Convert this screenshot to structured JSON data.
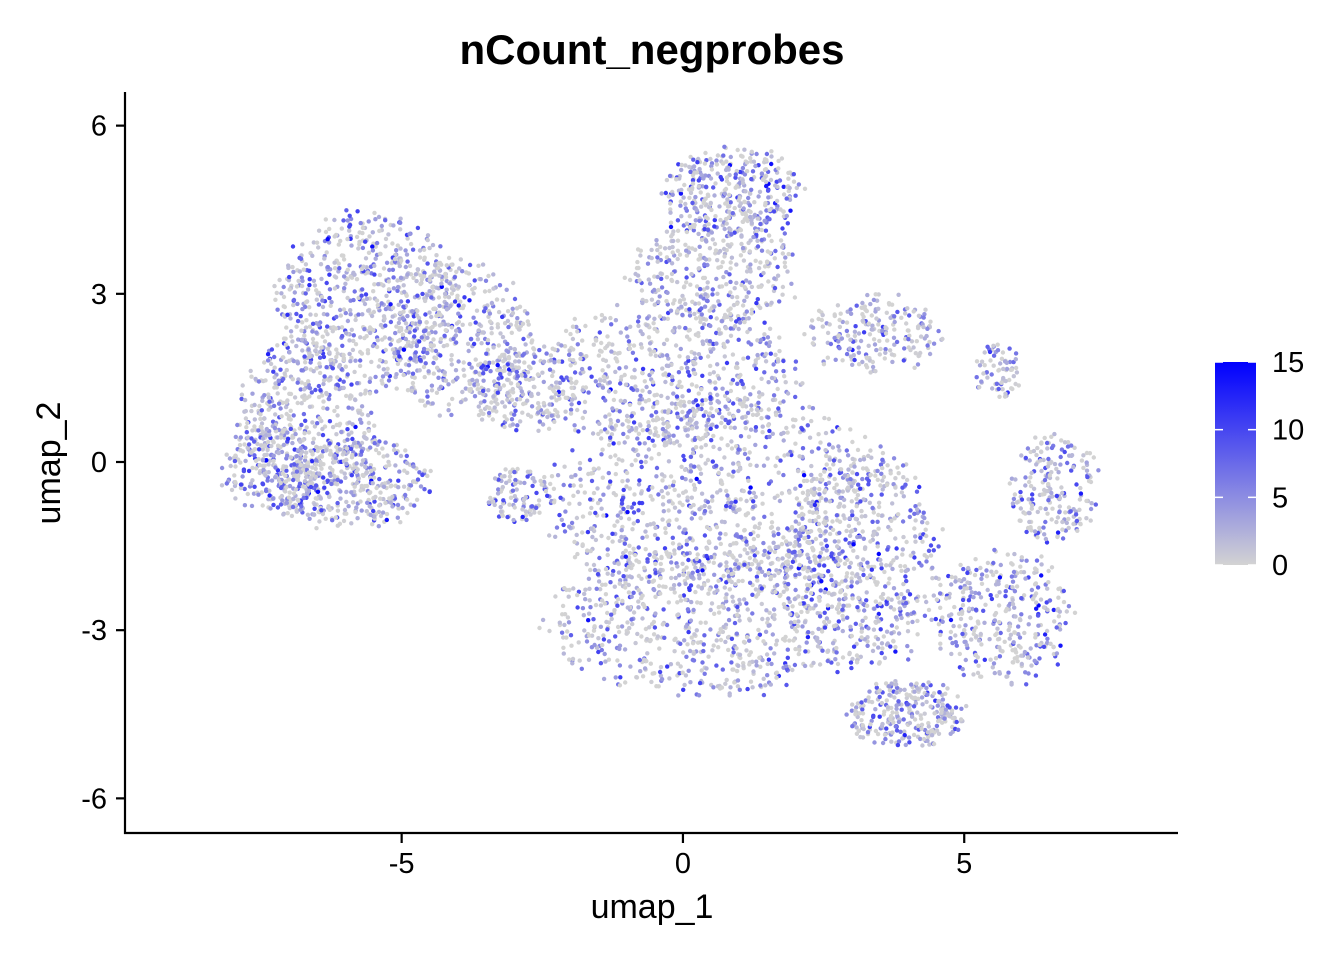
{
  "chart_data": {
    "type": "scatter",
    "title": "nCount_negprobes",
    "xlabel": "umap_1",
    "ylabel": "umap_2",
    "xlim": [
      -9.9,
      8.8
    ],
    "ylim": [
      -6.6,
      6.6
    ],
    "x_ticks": [
      -5,
      0,
      5
    ],
    "x_tick_labels": [
      "-5",
      "0",
      "5"
    ],
    "y_ticks": [
      -6,
      -3,
      0,
      3,
      6
    ],
    "y_tick_labels": [
      "-6",
      "-3",
      "0",
      "3",
      "6"
    ],
    "grid": false,
    "color_scale": {
      "min": 0,
      "max": 15,
      "low_color": "#d3d3d3",
      "high_color": "#0000ff",
      "ticks": [
        0,
        5,
        10,
        15
      ],
      "tick_labels": [
        "0",
        "5",
        "10",
        "15"
      ]
    },
    "clusters": [
      {
        "cx": -5.6,
        "cy": 2.9,
        "rx": 1.6,
        "ry": 1.6,
        "w": 9
      },
      {
        "cx": -4.0,
        "cy": 2.2,
        "rx": 1.3,
        "ry": 1.4,
        "w": 6
      },
      {
        "cx": -6.7,
        "cy": 0.6,
        "rx": 1.2,
        "ry": 1.7,
        "w": 7
      },
      {
        "cx": -5.8,
        "cy": -0.4,
        "rx": 1.3,
        "ry": 0.8,
        "w": 5
      },
      {
        "cx": -7.3,
        "cy": -0.1,
        "rx": 0.9,
        "ry": 0.8,
        "w": 3
      },
      {
        "cx": -2.8,
        "cy": 1.3,
        "rx": 1.0,
        "ry": 0.8,
        "w": 3
      },
      {
        "cx": -2.9,
        "cy": -0.6,
        "rx": 0.6,
        "ry": 0.5,
        "w": 1.5
      },
      {
        "cx": 0.9,
        "cy": 4.8,
        "rx": 1.2,
        "ry": 0.8,
        "w": 5
      },
      {
        "cx": 0.6,
        "cy": 3.4,
        "rx": 1.5,
        "ry": 1.0,
        "w": 5
      },
      {
        "cx": -0.2,
        "cy": 1.6,
        "rx": 2.3,
        "ry": 1.3,
        "w": 8
      },
      {
        "cx": 0.6,
        "cy": -0.6,
        "rx": 3.0,
        "ry": 1.8,
        "w": 13
      },
      {
        "cx": 0.5,
        "cy": -2.8,
        "rx": 2.8,
        "ry": 1.4,
        "w": 11
      },
      {
        "cx": 3.4,
        "cy": 2.3,
        "rx": 1.2,
        "ry": 0.7,
        "w": 3
      },
      {
        "cx": 3.2,
        "cy": -1.8,
        "rx": 1.4,
        "ry": 2.0,
        "w": 8
      },
      {
        "cx": 4.0,
        "cy": -4.5,
        "rx": 1.1,
        "ry": 0.6,
        "w": 4
      },
      {
        "cx": 6.6,
        "cy": -0.5,
        "rx": 0.8,
        "ry": 1.0,
        "w": 3
      },
      {
        "cx": 5.7,
        "cy": -2.8,
        "rx": 1.2,
        "ry": 1.2,
        "w": 5
      },
      {
        "cx": 5.6,
        "cy": 1.6,
        "rx": 0.4,
        "ry": 0.5,
        "w": 1
      }
    ]
  }
}
